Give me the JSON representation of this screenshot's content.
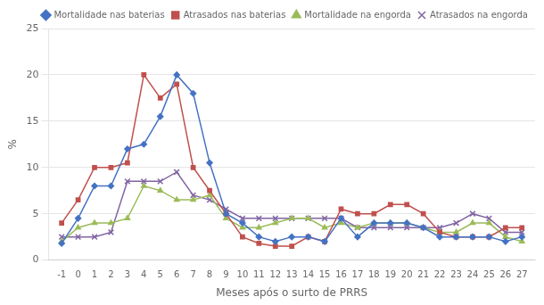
{
  "chart_data": {
    "type": "line",
    "xlabel": "Meses após o surto de PRRS",
    "ylabel": "%",
    "x": [
      -1,
      0,
      1,
      2,
      3,
      4,
      5,
      6,
      7,
      8,
      9,
      10,
      11,
      12,
      13,
      14,
      15,
      16,
      17,
      18,
      19,
      20,
      21,
      22,
      23,
      24,
      25,
      26,
      27
    ],
    "series": [
      {
        "name": "Mortalidade nas baterias",
        "color": "#4472C4",
        "marker": "diamond",
        "values": [
          1.8,
          4.5,
          8.0,
          8.0,
          12.0,
          12.5,
          15.5,
          20.0,
          18.0,
          10.5,
          5.0,
          4.0,
          2.5,
          2.0,
          2.5,
          2.5,
          2.0,
          4.5,
          2.5,
          4.0,
          4.0,
          4.0,
          3.5,
          2.5,
          2.5,
          2.5,
          2.5,
          2.0,
          2.5
        ]
      },
      {
        "name": "Atrasados nas baterias",
        "color": "#C0504D",
        "marker": "square",
        "values": [
          4.0,
          6.5,
          10.0,
          10.0,
          10.5,
          20.0,
          17.5,
          19.0,
          10.0,
          7.5,
          5.0,
          2.5,
          1.8,
          1.5,
          1.5,
          2.5,
          2.0,
          5.5,
          5.0,
          5.0,
          6.0,
          6.0,
          5.0,
          3.0,
          2.5,
          2.5,
          2.5,
          3.5,
          3.5
        ]
      },
      {
        "name": "Mortalidade na engorda",
        "color": "#9BBB59",
        "marker": "triangle",
        "values": [
          2.0,
          3.5,
          4.0,
          4.0,
          4.5,
          8.0,
          7.5,
          6.5,
          6.5,
          7.0,
          4.5,
          3.5,
          3.5,
          4.0,
          4.5,
          4.5,
          3.5,
          4.0,
          3.5,
          4.0,
          4.0,
          4.0,
          3.5,
          3.0,
          3.0,
          4.0,
          4.0,
          2.5,
          2.0
        ]
      },
      {
        "name": "Atrasados na engorda",
        "color": "#8064A2",
        "marker": "x",
        "values": [
          2.5,
          2.5,
          2.5,
          3.0,
          8.5,
          8.5,
          8.5,
          9.5,
          7.0,
          6.5,
          5.5,
          4.5,
          4.5,
          4.5,
          4.5,
          4.5,
          4.5,
          4.5,
          3.5,
          3.5,
          3.5,
          3.5,
          3.5,
          3.5,
          4.0,
          5.0,
          4.5,
          3.0,
          3.0
        ]
      }
    ],
    "xlim": [
      -1.8,
      27.8
    ],
    "xticks": [
      -1,
      0,
      1,
      2,
      3,
      4,
      5,
      6,
      7,
      8,
      9,
      10,
      11,
      12,
      13,
      14,
      15,
      16,
      17,
      18,
      19,
      20,
      21,
      22,
      23,
      24,
      25,
      26,
      27
    ],
    "ylim": [
      0,
      25
    ],
    "yticks": [
      0,
      5,
      10,
      15,
      20,
      25
    ],
    "grid": "y",
    "legend": "upper right"
  }
}
